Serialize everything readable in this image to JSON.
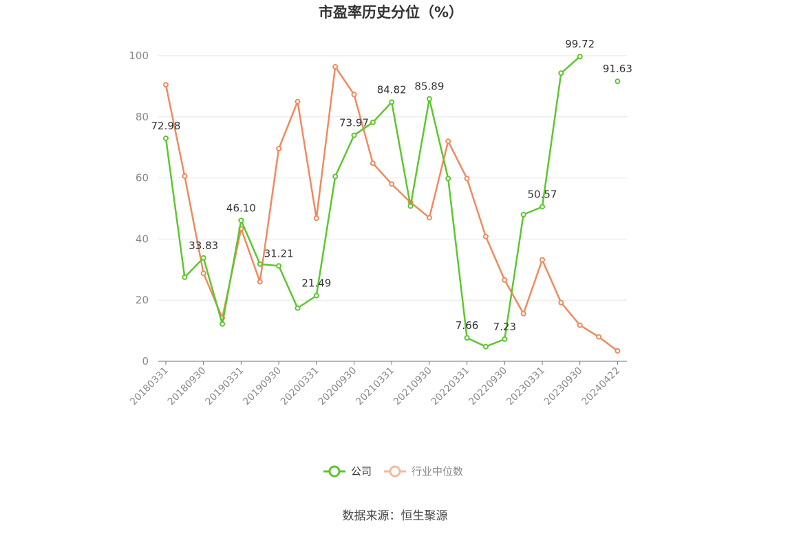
{
  "chart_data": {
    "type": "line",
    "title": "市盈率历史分位（%）",
    "ylim": [
      0,
      100
    ],
    "yticks": [
      "0",
      "20",
      "40",
      "60",
      "80",
      "100"
    ],
    "xtick_labels": [
      "20180331",
      "20180930",
      "20190331",
      "20190930",
      "20200331",
      "20200930",
      "20210331",
      "20210930",
      "20220331",
      "20220930",
      "20230331",
      "20230930",
      "20240422"
    ],
    "grid": true,
    "legend_position": "bottom",
    "series": [
      {
        "name": "公司",
        "color": "#5cc72e",
        "values": [
          72.98,
          27.5,
          33.83,
          12.2,
          46.1,
          31.8,
          31.21,
          17.4,
          21.49,
          60.5,
          73.97,
          78.2,
          84.82,
          50.8,
          85.89,
          59.8,
          7.66,
          4.8,
          7.23,
          48.0,
          50.57,
          94.3,
          99.72,
          null,
          91.63
        ],
        "labels": {
          "0": "72.98",
          "2": "33.83",
          "4": "46.10",
          "6": "31.21",
          "8": "21.49",
          "10": "73.97",
          "12": "84.82",
          "14": "85.89",
          "16": "7.66",
          "18": "7.23",
          "20": "50.57",
          "22": "99.72",
          "24": "91.63"
        }
      },
      {
        "name": "行业中位数",
        "color": "#f08a5d",
        "values": [
          90.5,
          60.6,
          28.8,
          14.2,
          43.4,
          26.0,
          69.6,
          85.0,
          46.8,
          96.4,
          87.3,
          64.8,
          58.0,
          52.0,
          47.0,
          72.0,
          59.8,
          40.8,
          26.6,
          15.6,
          33.2,
          19.2,
          11.8,
          8.0,
          3.4
        ]
      }
    ]
  },
  "legend": {
    "company_label": "公司",
    "industry_label": "行业中位数"
  },
  "source": "数据来源：恒生聚源"
}
